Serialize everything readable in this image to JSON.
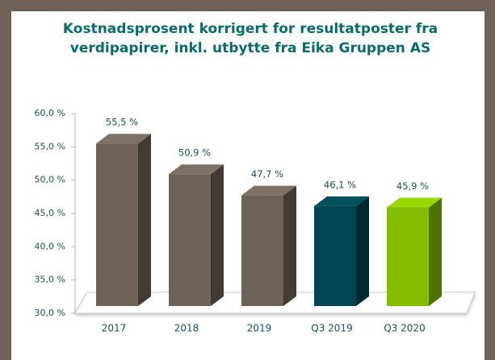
{
  "chart_data": {
    "type": "bar3d",
    "title": [
      "Kostnadsprosent korrigert for resultatposter fra",
      "verdipapirer, inkl. utbytte fra Eika Gruppen AS"
    ],
    "categories": [
      "2017",
      "2018",
      "2019",
      "Q3 2019",
      "Q3 2020"
    ],
    "values": [
      55.5,
      50.9,
      47.7,
      46.1,
      45.9
    ],
    "value_labels": [
      "55,5 %",
      "50,9 %",
      "47,7 %",
      "46,1 %",
      "45,9 %"
    ],
    "colors": [
      "#6e6259",
      "#6e6259",
      "#6e6259",
      "#004651",
      "#84bd00"
    ],
    "ylim": [
      30,
      60
    ],
    "yticks": [
      {
        "value": 30,
        "label": "30,0 %"
      },
      {
        "value": 35,
        "label": "35,0 %"
      },
      {
        "value": 40,
        "label": "40,0 %"
      },
      {
        "value": 45,
        "label": "45,0 %"
      },
      {
        "value": 50,
        "label": "50,0 %"
      },
      {
        "value": 55,
        "label": "55,0 %"
      },
      {
        "value": 60,
        "label": "60,0 %"
      }
    ],
    "grid": false
  }
}
